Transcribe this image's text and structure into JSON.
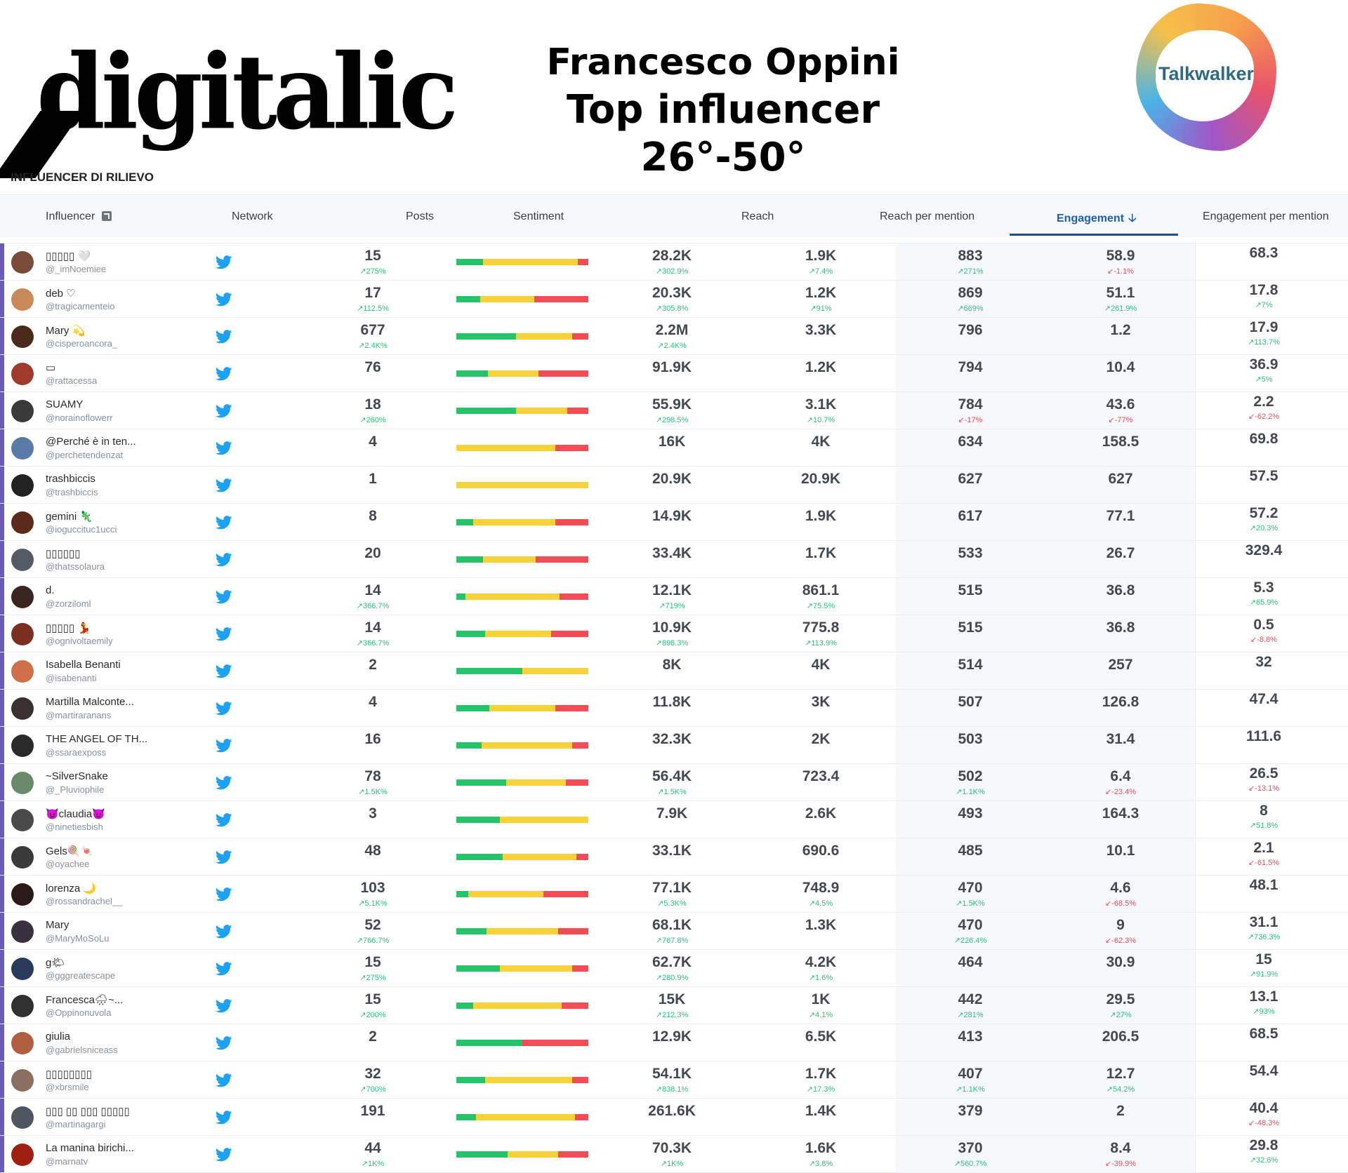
{
  "header": {
    "logo_text": "digitalic",
    "title_line1": "Francesco Oppini",
    "title_line2": "Top  influencer 26°-50°",
    "partner_logo": "Talkwalker"
  },
  "section_title": "INFLUENCER DI RILIEVO",
  "columns": {
    "influencer": "Influencer",
    "network": "Network",
    "posts": "Posts",
    "sentiment": "Sentiment",
    "reach": "Reach",
    "reach_per_mention": "Reach per mention",
    "engagement": "Engagement",
    "engagement_per_mention": "Engagement per mention"
  },
  "colors": {
    "positive": "#27c36a",
    "neutral": "#f7d23a",
    "negative": "#f24c57",
    "accent": "#1e5fae",
    "row_marker": "#6a5bb4",
    "twitter": "#1da1f2"
  },
  "rows": [
    {
      "name": "▯▯▯▯▯ 🤍",
      "handle": "@_imNoemiee",
      "avatar": "#7a4a3a",
      "network_icon": "twitter-icon",
      "posts": "15",
      "posts_chg": "↗275%",
      "posts_dir": "up",
      "sentiment": [
        0.2,
        0.72,
        0.08
      ],
      "reach": "28.2K",
      "reach_chg": "↗302.9%",
      "reach_dir": "up",
      "rpm": "1.9K",
      "rpm_chg": "↗7.4%",
      "rpm_dir": "up",
      "eng": "883",
      "eng_chg": "↗271%",
      "eng_dir": "up",
      "epm": "58.9",
      "epm_chg": "↙-1.1%",
      "epm_dir": "down",
      "last": "68.3",
      "last_chg": "",
      "last_dir": "up"
    },
    {
      "name": "deb ♡",
      "handle": "@tragicamenteio",
      "avatar": "#c98a5a",
      "network_icon": "twitter-icon",
      "posts": "17",
      "posts_chg": "↗112.5%",
      "posts_dir": "up",
      "sentiment": [
        0.18,
        0.41,
        0.41
      ],
      "reach": "20.3K",
      "reach_chg": "↗305.8%",
      "reach_dir": "up",
      "rpm": "1.2K",
      "rpm_chg": "↗91%",
      "rpm_dir": "up",
      "eng": "869",
      "eng_chg": "↗669%",
      "eng_dir": "up",
      "epm": "51.1",
      "epm_chg": "↗261.9%",
      "epm_dir": "up",
      "last": "17.8",
      "last_chg": "↗7%",
      "last_dir": "up"
    },
    {
      "name": "Mary 💫",
      "handle": "@cisperoancora_",
      "avatar": "#4a2a1a",
      "network_icon": "twitter-icon",
      "posts": "677",
      "posts_chg": "↗2.4K%",
      "posts_dir": "up",
      "sentiment": [
        0.45,
        0.43,
        0.12
      ],
      "reach": "2.2M",
      "reach_chg": "↗2.4K%",
      "reach_dir": "up",
      "rpm": "3.3K",
      "rpm_chg": "",
      "rpm_dir": "up",
      "eng": "796",
      "eng_chg": "",
      "eng_dir": "up",
      "epm": "1.2",
      "epm_chg": "",
      "epm_dir": "up",
      "last": "17.9",
      "last_chg": "↗113.7%",
      "last_dir": "up"
    },
    {
      "name": "▭",
      "handle": "@rattacessa",
      "avatar": "#a03a2a",
      "network_icon": "twitter-icon",
      "posts": "76",
      "posts_chg": "",
      "posts_dir": "up",
      "sentiment": [
        0.24,
        0.38,
        0.38
      ],
      "reach": "91.9K",
      "reach_chg": "",
      "reach_dir": "up",
      "rpm": "1.2K",
      "rpm_chg": "",
      "rpm_dir": "up",
      "eng": "794",
      "eng_chg": "",
      "eng_dir": "up",
      "epm": "10.4",
      "epm_chg": "",
      "epm_dir": "up",
      "last": "36.9",
      "last_chg": "↗5%",
      "last_dir": "up"
    },
    {
      "name": "SUAMY",
      "handle": "@norainoflowerr",
      "avatar": "#3a3a3a",
      "network_icon": "twitter-icon",
      "posts": "18",
      "posts_chg": "↗260%",
      "posts_dir": "up",
      "sentiment": [
        0.45,
        0.39,
        0.16
      ],
      "reach": "55.9K",
      "reach_chg": "↗298.5%",
      "reach_dir": "up",
      "rpm": "3.1K",
      "rpm_chg": "↗10.7%",
      "rpm_dir": "up",
      "eng": "784",
      "eng_chg": "↙-17%",
      "eng_dir": "down",
      "epm": "43.6",
      "epm_chg": "↙-77%",
      "epm_dir": "down",
      "last": "2.2",
      "last_chg": "↙-62.2%",
      "last_dir": "down"
    },
    {
      "name": "@Perché è in ten...",
      "handle": "@perchetendenzat",
      "avatar": "#5a7aa8",
      "network_icon": "twitter-icon",
      "posts": "4",
      "posts_chg": "",
      "posts_dir": "up",
      "sentiment": [
        0,
        0.75,
        0.25
      ],
      "reach": "16K",
      "reach_chg": "",
      "reach_dir": "up",
      "rpm": "4K",
      "rpm_chg": "",
      "rpm_dir": "up",
      "eng": "634",
      "eng_chg": "",
      "eng_dir": "up",
      "epm": "158.5",
      "epm_chg": "",
      "epm_dir": "up",
      "last": "69.8",
      "last_chg": "",
      "last_dir": "up"
    },
    {
      "name": "trashbiccis",
      "handle": "@trashbiccis",
      "avatar": "#222222",
      "network_icon": "twitter-icon",
      "posts": "1",
      "posts_chg": "",
      "posts_dir": "up",
      "sentiment": [
        0,
        1,
        0
      ],
      "reach": "20.9K",
      "reach_chg": "",
      "reach_dir": "up",
      "rpm": "20.9K",
      "rpm_chg": "",
      "rpm_dir": "up",
      "eng": "627",
      "eng_chg": "",
      "eng_dir": "up",
      "epm": "627",
      "epm_chg": "",
      "epm_dir": "up",
      "last": "57.5",
      "last_chg": "",
      "last_dir": "up"
    },
    {
      "name": "gemini 🦎",
      "handle": "@ioguccituc1ucci",
      "avatar": "#5a2a1a",
      "network_icon": "twitter-icon",
      "posts": "8",
      "posts_chg": "",
      "posts_dir": "up",
      "sentiment": [
        0.13,
        0.62,
        0.25
      ],
      "reach": "14.9K",
      "reach_chg": "",
      "reach_dir": "up",
      "rpm": "1.9K",
      "rpm_chg": "",
      "rpm_dir": "up",
      "eng": "617",
      "eng_chg": "",
      "eng_dir": "up",
      "epm": "77.1",
      "epm_chg": "",
      "epm_dir": "up",
      "last": "57.2",
      "last_chg": "↗20.3%",
      "last_dir": "up"
    },
    {
      "name": "▯▯▯▯▯▯",
      "handle": "@thatssolaura",
      "avatar": "#555b66",
      "network_icon": "twitter-icon",
      "posts": "20",
      "posts_chg": "",
      "posts_dir": "up",
      "sentiment": [
        0.2,
        0.4,
        0.4
      ],
      "reach": "33.4K",
      "reach_chg": "",
      "reach_dir": "up",
      "rpm": "1.7K",
      "rpm_chg": "",
      "rpm_dir": "up",
      "eng": "533",
      "eng_chg": "",
      "eng_dir": "up",
      "epm": "26.7",
      "epm_chg": "",
      "epm_dir": "up",
      "last": "329.4",
      "last_chg": "",
      "last_dir": "up"
    },
    {
      "name": "d.",
      "handle": "@zorziloml",
      "avatar": "#3a2520",
      "network_icon": "twitter-icon",
      "posts": "14",
      "posts_chg": "↗366.7%",
      "posts_dir": "up",
      "sentiment": [
        0.07,
        0.71,
        0.22
      ],
      "reach": "12.1K",
      "reach_chg": "↗719%",
      "reach_dir": "up",
      "rpm": "861.1",
      "rpm_chg": "↗75.5%",
      "rpm_dir": "up",
      "eng": "515",
      "eng_chg": "",
      "eng_dir": "up",
      "epm": "36.8",
      "epm_chg": "",
      "epm_dir": "up",
      "last": "5.3",
      "last_chg": "↗65.9%",
      "last_dir": "up"
    },
    {
      "name": "▯▯▯▯▯ 💃",
      "handle": "@ognivoltaemily",
      "avatar": "#7a3020",
      "network_icon": "twitter-icon",
      "posts": "14",
      "posts_chg": "↗366.7%",
      "posts_dir": "up",
      "sentiment": [
        0.22,
        0.5,
        0.28
      ],
      "reach": "10.9K",
      "reach_chg": "↗898.3%",
      "reach_dir": "up",
      "rpm": "775.8",
      "rpm_chg": "↗113.9%",
      "rpm_dir": "up",
      "eng": "515",
      "eng_chg": "",
      "eng_dir": "up",
      "epm": "36.8",
      "epm_chg": "",
      "epm_dir": "up",
      "last": "0.5",
      "last_chg": "↙-8.8%",
      "last_dir": "down"
    },
    {
      "name": "Isabella Benanti",
      "handle": "@isabenanti",
      "avatar": "#d0704a",
      "network_icon": "twitter-icon",
      "posts": "2",
      "posts_chg": "",
      "posts_dir": "up",
      "sentiment": [
        0.5,
        0.5,
        0
      ],
      "reach": "8K",
      "reach_chg": "",
      "reach_dir": "up",
      "rpm": "4K",
      "rpm_chg": "",
      "rpm_dir": "up",
      "eng": "514",
      "eng_chg": "",
      "eng_dir": "up",
      "epm": "257",
      "epm_chg": "",
      "epm_dir": "up",
      "last": "32",
      "last_chg": "",
      "last_dir": "up"
    },
    {
      "name": "Martilla Malconte...",
      "handle": "@martiraranans",
      "avatar": "#3a3030",
      "network_icon": "twitter-icon",
      "posts": "4",
      "posts_chg": "",
      "posts_dir": "up",
      "sentiment": [
        0.25,
        0.5,
        0.25
      ],
      "reach": "11.8K",
      "reach_chg": "",
      "reach_dir": "up",
      "rpm": "3K",
      "rpm_chg": "",
      "rpm_dir": "up",
      "eng": "507",
      "eng_chg": "",
      "eng_dir": "up",
      "epm": "126.8",
      "epm_chg": "",
      "epm_dir": "up",
      "last": "47.4",
      "last_chg": "",
      "last_dir": "up"
    },
    {
      "name": "THE ANGEL OF TH...",
      "handle": "@ssaraexposs",
      "avatar": "#2a2a2a",
      "network_icon": "twitter-icon",
      "posts": "16",
      "posts_chg": "",
      "posts_dir": "up",
      "sentiment": [
        0.19,
        0.69,
        0.12
      ],
      "reach": "32.3K",
      "reach_chg": "",
      "reach_dir": "up",
      "rpm": "2K",
      "rpm_chg": "",
      "rpm_dir": "up",
      "eng": "503",
      "eng_chg": "",
      "eng_dir": "up",
      "epm": "31.4",
      "epm_chg": "",
      "epm_dir": "up",
      "last": "111.6",
      "last_chg": "",
      "last_dir": "up"
    },
    {
      "name": "~SilverSnake",
      "handle": "@_Pluviophile",
      "avatar": "#6a8a6a",
      "network_icon": "twitter-icon",
      "posts": "78",
      "posts_chg": "↗1.5K%",
      "posts_dir": "up",
      "sentiment": [
        0.38,
        0.45,
        0.17
      ],
      "reach": "56.4K",
      "reach_chg": "↗1.5K%",
      "reach_dir": "up",
      "rpm": "723.4",
      "rpm_chg": "",
      "rpm_dir": "up",
      "eng": "502",
      "eng_chg": "↗1.1K%",
      "eng_dir": "up",
      "epm": "6.4",
      "epm_chg": "↙-23.4%",
      "epm_dir": "down",
      "last": "26.5",
      "last_chg": "↙-13.1%",
      "last_dir": "down"
    },
    {
      "name": "😈claudia😈",
      "handle": "@ninetiesbish",
      "avatar": "#4a4a4a",
      "network_icon": "twitter-icon",
      "posts": "3",
      "posts_chg": "",
      "posts_dir": "up",
      "sentiment": [
        0.33,
        0.67,
        0
      ],
      "reach": "7.9K",
      "reach_chg": "",
      "reach_dir": "up",
      "rpm": "2.6K",
      "rpm_chg": "",
      "rpm_dir": "up",
      "eng": "493",
      "eng_chg": "",
      "eng_dir": "up",
      "epm": "164.3",
      "epm_chg": "",
      "epm_dir": "up",
      "last": "8",
      "last_chg": "↗51.8%",
      "last_dir": "up"
    },
    {
      "name": "Gels🍭🍬",
      "handle": "@oyachee",
      "avatar": "#3a3a3a",
      "network_icon": "twitter-icon",
      "posts": "48",
      "posts_chg": "",
      "posts_dir": "up",
      "sentiment": [
        0.35,
        0.56,
        0.09
      ],
      "reach": "33.1K",
      "reach_chg": "",
      "reach_dir": "up",
      "rpm": "690.6",
      "rpm_chg": "",
      "rpm_dir": "up",
      "eng": "485",
      "eng_chg": "",
      "eng_dir": "up",
      "epm": "10.1",
      "epm_chg": "",
      "epm_dir": "up",
      "last": "2.1",
      "last_chg": "↙-61.5%",
      "last_dir": "down"
    },
    {
      "name": "lorenza 🌙",
      "handle": "@rossandrachel__",
      "avatar": "#2a1a1a",
      "network_icon": "twitter-icon",
      "posts": "103",
      "posts_chg": "↗5.1K%",
      "posts_dir": "up",
      "sentiment": [
        0.09,
        0.57,
        0.34
      ],
      "reach": "77.1K",
      "reach_chg": "↗5.3K%",
      "reach_dir": "up",
      "rpm": "748.9",
      "rpm_chg": "↗4.5%",
      "rpm_dir": "up",
      "eng": "470",
      "eng_chg": "↗1.5K%",
      "eng_dir": "up",
      "epm": "4.6",
      "epm_chg": "↙-68.5%",
      "epm_dir": "down",
      "last": "48.1",
      "last_chg": "",
      "last_dir": "up"
    },
    {
      "name": "Mary",
      "handle": "@MaryMoSoLu",
      "avatar": "#3a3040",
      "network_icon": "twitter-icon",
      "posts": "52",
      "posts_chg": "↗766.7%",
      "posts_dir": "up",
      "sentiment": [
        0.23,
        0.54,
        0.23
      ],
      "reach": "68.1K",
      "reach_chg": "↗767.8%",
      "reach_dir": "up",
      "rpm": "1.3K",
      "rpm_chg": "",
      "rpm_dir": "up",
      "eng": "470",
      "eng_chg": "↗226.4%",
      "eng_dir": "up",
      "epm": "9",
      "epm_chg": "↙-62.3%",
      "epm_dir": "down",
      "last": "31.1",
      "last_chg": "↗736.3%",
      "last_dir": "up"
    },
    {
      "name": "g🌤",
      "handle": "@gggreatescape",
      "avatar": "#2a3a5a",
      "network_icon": "twitter-icon",
      "posts": "15",
      "posts_chg": "↗275%",
      "posts_dir": "up",
      "sentiment": [
        0.33,
        0.55,
        0.12
      ],
      "reach": "62.7K",
      "reach_chg": "↗280.9%",
      "reach_dir": "up",
      "rpm": "4.2K",
      "rpm_chg": "↗1.6%",
      "rpm_dir": "up",
      "eng": "464",
      "eng_chg": "",
      "eng_dir": "up",
      "epm": "30.9",
      "epm_chg": "",
      "epm_dir": "up",
      "last": "15",
      "last_chg": "↗91.9%",
      "last_dir": "up"
    },
    {
      "name": "Francesca🌧~...",
      "handle": "@Oppinonuvola",
      "avatar": "#303030",
      "network_icon": "twitter-icon",
      "posts": "15",
      "posts_chg": "↗200%",
      "posts_dir": "up",
      "sentiment": [
        0.13,
        0.67,
        0.2
      ],
      "reach": "15K",
      "reach_chg": "↗212.3%",
      "reach_dir": "up",
      "rpm": "1K",
      "rpm_chg": "↗4.1%",
      "rpm_dir": "up",
      "eng": "442",
      "eng_chg": "↗281%",
      "eng_dir": "up",
      "epm": "29.5",
      "epm_chg": "↗27%",
      "epm_dir": "up",
      "last": "13.1",
      "last_chg": "↗93%",
      "last_dir": "up"
    },
    {
      "name": "giulia",
      "handle": "@gabrielsniceass",
      "avatar": "#b06040",
      "network_icon": "twitter-icon",
      "posts": "2",
      "posts_chg": "",
      "posts_dir": "up",
      "sentiment": [
        0.5,
        0,
        0.5
      ],
      "reach": "12.9K",
      "reach_chg": "",
      "reach_dir": "up",
      "rpm": "6.5K",
      "rpm_chg": "",
      "rpm_dir": "up",
      "eng": "413",
      "eng_chg": "",
      "eng_dir": "up",
      "epm": "206.5",
      "epm_chg": "",
      "epm_dir": "up",
      "last": "68.5",
      "last_chg": "",
      "last_dir": "up"
    },
    {
      "name": "▯▯▯▯▯▯▯▯",
      "handle": "@xbrsmile",
      "avatar": "#8a7060",
      "network_icon": "twitter-icon",
      "posts": "32",
      "posts_chg": "↗700%",
      "posts_dir": "up",
      "sentiment": [
        0.22,
        0.66,
        0.12
      ],
      "reach": "54.1K",
      "reach_chg": "↗838.1%",
      "reach_dir": "up",
      "rpm": "1.7K",
      "rpm_chg": "↗17.3%",
      "rpm_dir": "up",
      "eng": "407",
      "eng_chg": "↗1.1K%",
      "eng_dir": "up",
      "epm": "12.7",
      "epm_chg": "↗54.2%",
      "epm_dir": "up",
      "last": "54.4",
      "last_chg": "",
      "last_dir": "up"
    },
    {
      "name": "▯▯▯ ▯▯ ▯▯▯ ▯▯▯▯▯",
      "handle": "@martinagargi",
      "avatar": "#505560",
      "network_icon": "twitter-icon",
      "posts": "191",
      "posts_chg": "",
      "posts_dir": "up",
      "sentiment": [
        0.15,
        0.75,
        0.1
      ],
      "reach": "261.6K",
      "reach_chg": "",
      "reach_dir": "up",
      "rpm": "1.4K",
      "rpm_chg": "",
      "rpm_dir": "up",
      "eng": "379",
      "eng_chg": "",
      "eng_dir": "up",
      "epm": "2",
      "epm_chg": "",
      "epm_dir": "up",
      "last": "40.4",
      "last_chg": "↙-48.3%",
      "last_dir": "down"
    },
    {
      "name": "La manina birichi...",
      "handle": "@marnatv",
      "avatar": "#a02010",
      "network_icon": "twitter-icon",
      "posts": "44",
      "posts_chg": "↗1K%",
      "posts_dir": "up",
      "sentiment": [
        0.39,
        0.38,
        0.23
      ],
      "reach": "70.3K",
      "reach_chg": "↗1K%",
      "reach_dir": "up",
      "rpm": "1.6K",
      "rpm_chg": "↗3.8%",
      "rpm_dir": "up",
      "eng": "370",
      "eng_chg": "↗560.7%",
      "eng_dir": "up",
      "epm": "8.4",
      "epm_chg": "↙-39.9%",
      "epm_dir": "down",
      "last": "29.8",
      "last_chg": "↗32.6%",
      "last_dir": "up"
    }
  ]
}
